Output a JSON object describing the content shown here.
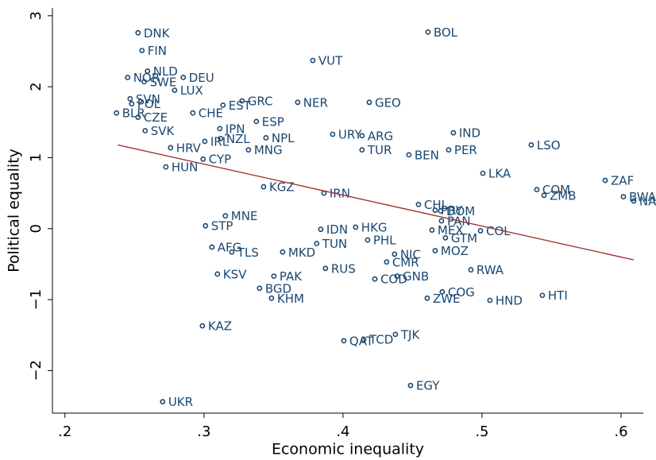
{
  "chart_data": {
    "type": "scatter",
    "xlabel": "Economic inequality",
    "ylabel": "Political equality",
    "xlim": [
      0.191,
      0.616
    ],
    "ylim": [
      -2.6,
      3.11
    ],
    "xticks": [
      {
        "value": 0.2,
        "label": ".2"
      },
      {
        "value": 0.3,
        "label": ".3"
      },
      {
        "value": 0.4,
        "label": ".4"
      },
      {
        "value": 0.5,
        "label": ".5"
      },
      {
        "value": 0.6,
        "label": ".6"
      }
    ],
    "yticks": [
      {
        "value": -2,
        "label": "−2"
      },
      {
        "value": -1,
        "label": "−1"
      },
      0,
      1,
      2,
      3
    ],
    "color": "#1a476f",
    "labels": [
      "DNK",
      "FIN",
      "NLD",
      "NOR",
      "SWE",
      "DEU",
      "LUX",
      "SVN",
      "POL",
      "CZE",
      "BLR",
      "CHE",
      "EST",
      "GRC",
      "ESP",
      "NER",
      "GEO",
      "VUT",
      "BOL",
      "SVK",
      "JPN",
      "HRV",
      "IRL",
      "NZL",
      "HUN",
      "MNG",
      "URY",
      "ARG",
      "TUR",
      "NPL",
      "BEN",
      "PER",
      "IND",
      "LSO",
      "LKA",
      "ZAF",
      "COM",
      "ZMB",
      "BWA",
      "NAM",
      "CYP",
      "KGZ",
      "IRN",
      "CHL",
      "PRY",
      "DOM",
      "PAN",
      "MEX",
      "COL",
      "GTM",
      "MOZ",
      "NIC",
      "PHL",
      "HKG",
      "IDN",
      "TUN",
      "MNE",
      "STP",
      "AFG",
      "TLS",
      "KSV",
      "MKD",
      "BGD",
      "PAK",
      "KHM",
      "RUS",
      "CMR",
      "COD",
      "GNB",
      "RWA",
      "COG",
      "ZWE",
      "HND",
      "HTI",
      "KAZ",
      "TJK",
      "TCD",
      "QAT",
      "EGY",
      "UKR"
    ],
    "x": [
      0.2526,
      0.2554,
      0.2594,
      0.2451,
      0.257,
      0.2851,
      0.2789,
      0.2469,
      0.248,
      0.2526,
      0.2371,
      0.292,
      0.3137,
      0.3274,
      0.3377,
      0.3674,
      0.4189,
      0.3783,
      0.4611,
      0.2577,
      0.3114,
      0.276,
      0.3006,
      0.312,
      0.2726,
      0.332,
      0.3926,
      0.4137,
      0.4137,
      0.3446,
      0.4474,
      0.476,
      0.4794,
      0.5354,
      0.5006,
      0.5886,
      0.5394,
      0.5446,
      0.6017,
      0.6091,
      0.2994,
      0.3429,
      0.3863,
      0.4543,
      0.4663,
      0.4703,
      0.4709,
      0.464,
      0.4989,
      0.4737,
      0.4663,
      0.4371,
      0.4177,
      0.4091,
      0.384,
      0.3811,
      0.3154,
      0.3011,
      0.3057,
      0.32,
      0.3097,
      0.3566,
      0.34,
      0.3503,
      0.3486,
      0.3874,
      0.4314,
      0.4229,
      0.4389,
      0.492,
      0.4714,
      0.4606,
      0.5057,
      0.5434,
      0.2989,
      0.4377,
      0.4149,
      0.4006,
      0.4486,
      0.2703
    ],
    "y": [
      2.76,
      2.51,
      2.22,
      2.13,
      2.07,
      2.13,
      1.95,
      1.83,
      1.76,
      1.57,
      1.63,
      1.63,
      1.74,
      1.8,
      1.51,
      1.78,
      1.78,
      2.37,
      2.77,
      1.38,
      1.41,
      1.14,
      1.23,
      1.27,
      0.87,
      1.11,
      1.33,
      1.31,
      1.11,
      1.28,
      1.04,
      1.11,
      1.35,
      1.18,
      0.78,
      0.68,
      0.55,
      0.47,
      0.45,
      0.39,
      0.98,
      0.59,
      0.5,
      0.34,
      0.26,
      0.25,
      0.11,
      -0.02,
      -0.03,
      -0.13,
      -0.31,
      -0.36,
      -0.16,
      0.02,
      -0.01,
      -0.21,
      0.18,
      0.04,
      -0.26,
      -0.33,
      -0.64,
      -0.33,
      -0.84,
      -0.67,
      -0.98,
      -0.56,
      -0.47,
      -0.71,
      -0.67,
      -0.58,
      -0.89,
      -0.98,
      -1.01,
      -0.94,
      -1.37,
      -1.49,
      -1.56,
      -1.58,
      -2.21,
      -2.44
    ],
    "fit": {
      "x": [
        0.238,
        0.609
      ],
      "y": [
        1.18,
        -0.44
      ],
      "color": "#a03434"
    }
  }
}
